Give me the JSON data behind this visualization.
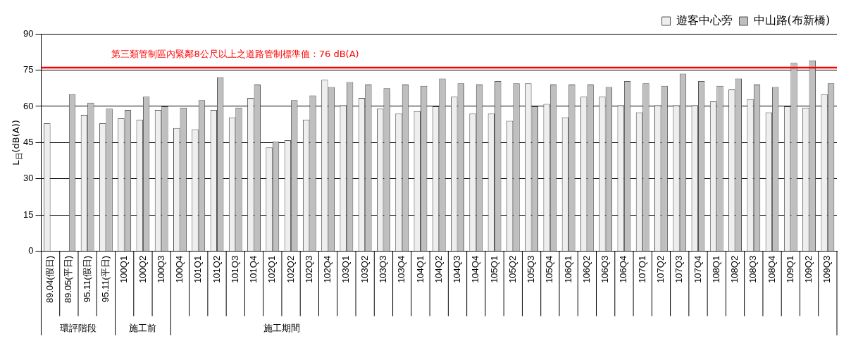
{
  "chart_data": {
    "type": "bar",
    "ylabel": "L$_{日}$(dB(A))",
    "categories": [
      "89.04(假日)",
      "89.05(平日)",
      "95.11(假日)",
      "95.11(平日)",
      "100Q1",
      "100Q2",
      "100Q3",
      "100Q4",
      "101Q1",
      "101Q2",
      "101Q3",
      "101Q4",
      "102Q1",
      "102Q2",
      "102Q3",
      "102Q4",
      "103Q1",
      "103Q2",
      "103Q3",
      "103Q4",
      "104Q1",
      "104Q2",
      "104Q3",
      "104Q4",
      "105Q1",
      "105Q2",
      "105Q3",
      "105Q4",
      "106Q1",
      "106Q2",
      "106Q3",
      "106Q4",
      "107Q1",
      "107Q2",
      "107Q3",
      "107Q4",
      "108Q1",
      "108Q2",
      "108Q3",
      "108Q4",
      "109Q1",
      "109Q2",
      "109Q3"
    ],
    "series": [
      {
        "name": "遊客中心旁",
        "color": "#eeeeee",
        "values": [
          53,
          null,
          56.5,
          53,
          55,
          54.5,
          58.5,
          51,
          50.5,
          58.5,
          55.5,
          63.5,
          43,
          46,
          54.5,
          71,
          60.5,
          63.5,
          59,
          57,
          58,
          60,
          64,
          57,
          57,
          54,
          69.5,
          61,
          55.5,
          64,
          64,
          60.5,
          57.5,
          60.5,
          60.5,
          60.5,
          62,
          67,
          63,
          57.5,
          60,
          59.5,
          65
        ]
      },
      {
        "name": "中山路(布新橋)",
        "color": "#bfbfbf",
        "values": [
          null,
          65,
          61.5,
          59,
          58.5,
          64,
          60,
          59.5,
          62.5,
          72,
          59.5,
          69,
          45.5,
          62.5,
          64.5,
          68,
          70,
          69,
          67.5,
          69,
          68.5,
          71.5,
          69.5,
          69,
          70.5,
          69.5,
          60,
          69,
          69,
          69,
          68,
          70.5,
          69.5,
          68.5,
          73.5,
          70.5,
          68.5,
          71.5,
          69,
          68,
          78,
          79,
          69.5
        ]
      }
    ],
    "ylim": [
      0,
      90
    ],
    "yticks": [
      0,
      15,
      30,
      45,
      60,
      75,
      90
    ],
    "grid": "y",
    "legend": "top right",
    "ref_lines": [
      {
        "axis": "y",
        "value": 76,
        "label": "第三類管制區內緊鄰8公尺以上之道路管制標準值：76 dB(A)",
        "color": "#ff0000"
      }
    ],
    "annotations": [
      "環評階段",
      "施工前",
      "施工期間"
    ]
  }
}
